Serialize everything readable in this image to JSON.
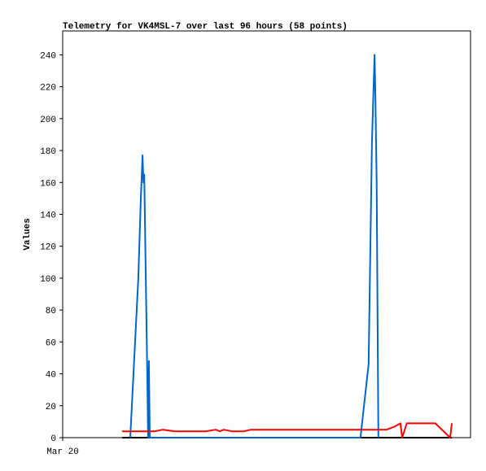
{
  "chart_data": {
    "type": "line",
    "title": "Telemetry for VK4MSL-7 over last 96 hours (58 points)",
    "y_label": "Values",
    "xlim": [
      0,
      96
    ],
    "xticks": [
      {
        "value": 0,
        "label": "Mar 20"
      }
    ],
    "ylim": [
      0,
      255
    ],
    "yticks": [
      0,
      20,
      40,
      60,
      80,
      100,
      120,
      140,
      160,
      180,
      200,
      220,
      240
    ],
    "series": [
      {
        "color": "#000000",
        "x": [
          14.0,
          91.6
        ],
        "values": [
          0,
          0
        ]
      },
      {
        "color": "#0066cc",
        "x": [
          15.9,
          17.8,
          18.4,
          18.8,
          19.0,
          19.2,
          19.5,
          19.9,
          20.1,
          20.3,
          20.5,
          70.1,
          72.0,
          72.8,
          73.4,
          73.6,
          73.9,
          74.3
        ],
        "values": [
          0,
          100,
          150,
          177,
          160,
          165,
          110,
          40,
          0,
          48,
          0,
          0,
          46,
          185,
          240,
          215,
          160,
          0
        ]
      },
      {
        "color": "#ff0000",
        "x": [
          14.0,
          21.6,
          23.6,
          26.4,
          33.7,
          36.0,
          37.0,
          37.9,
          39.8,
          42.7,
          44.3,
          76.2,
          78.2,
          79.5,
          79.9,
          81.0,
          87.7,
          91.2,
          91.6
        ],
        "values": [
          4,
          4,
          5,
          4,
          4,
          5,
          4,
          5,
          4,
          4,
          5,
          5,
          7,
          9,
          0,
          9,
          9,
          0,
          9
        ]
      }
    ]
  }
}
